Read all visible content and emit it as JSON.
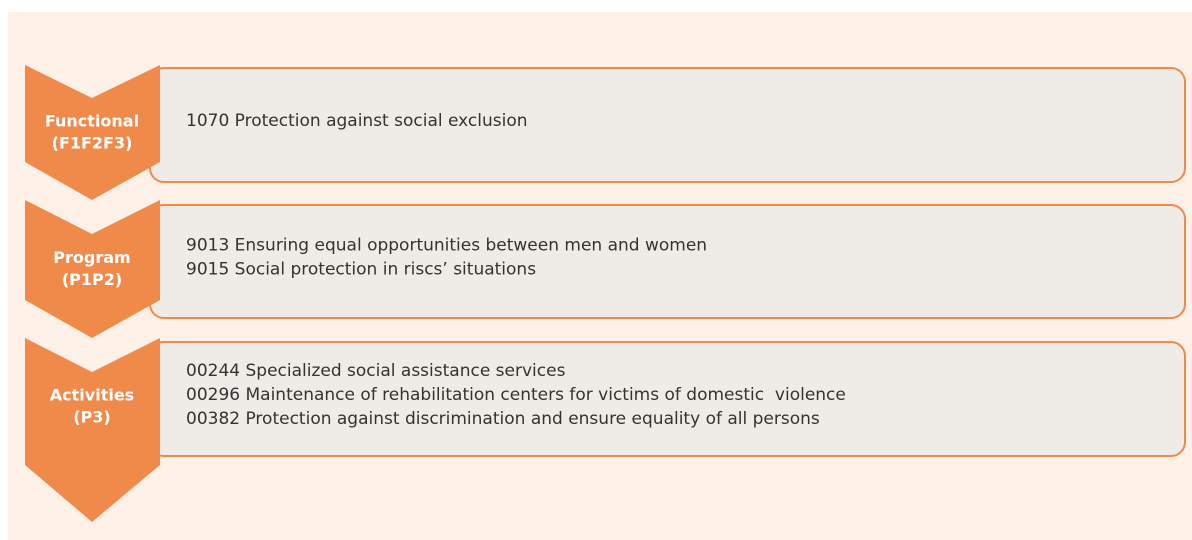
{
  "levels": [
    {
      "label": [
        "Functional",
        "(F1F2F3)"
      ],
      "items": [
        "1070 Protection against social exclusion"
      ]
    },
    {
      "label": [
        "Program",
        "(P1P2)"
      ],
      "items": [
        "9013 Ensuring equal opportunities between men and women",
        "9015 Social protection in riscs’ situations"
      ]
    },
    {
      "label": [
        "Activities",
        "(P3)"
      ],
      "items": [
        "00244 Specialized social assistance services",
        "00296 Maintenance of rehabilitation centers for victims of domestic  violence",
        "00382 Protection against discrimination and ensure equality of all persons"
      ]
    }
  ]
}
